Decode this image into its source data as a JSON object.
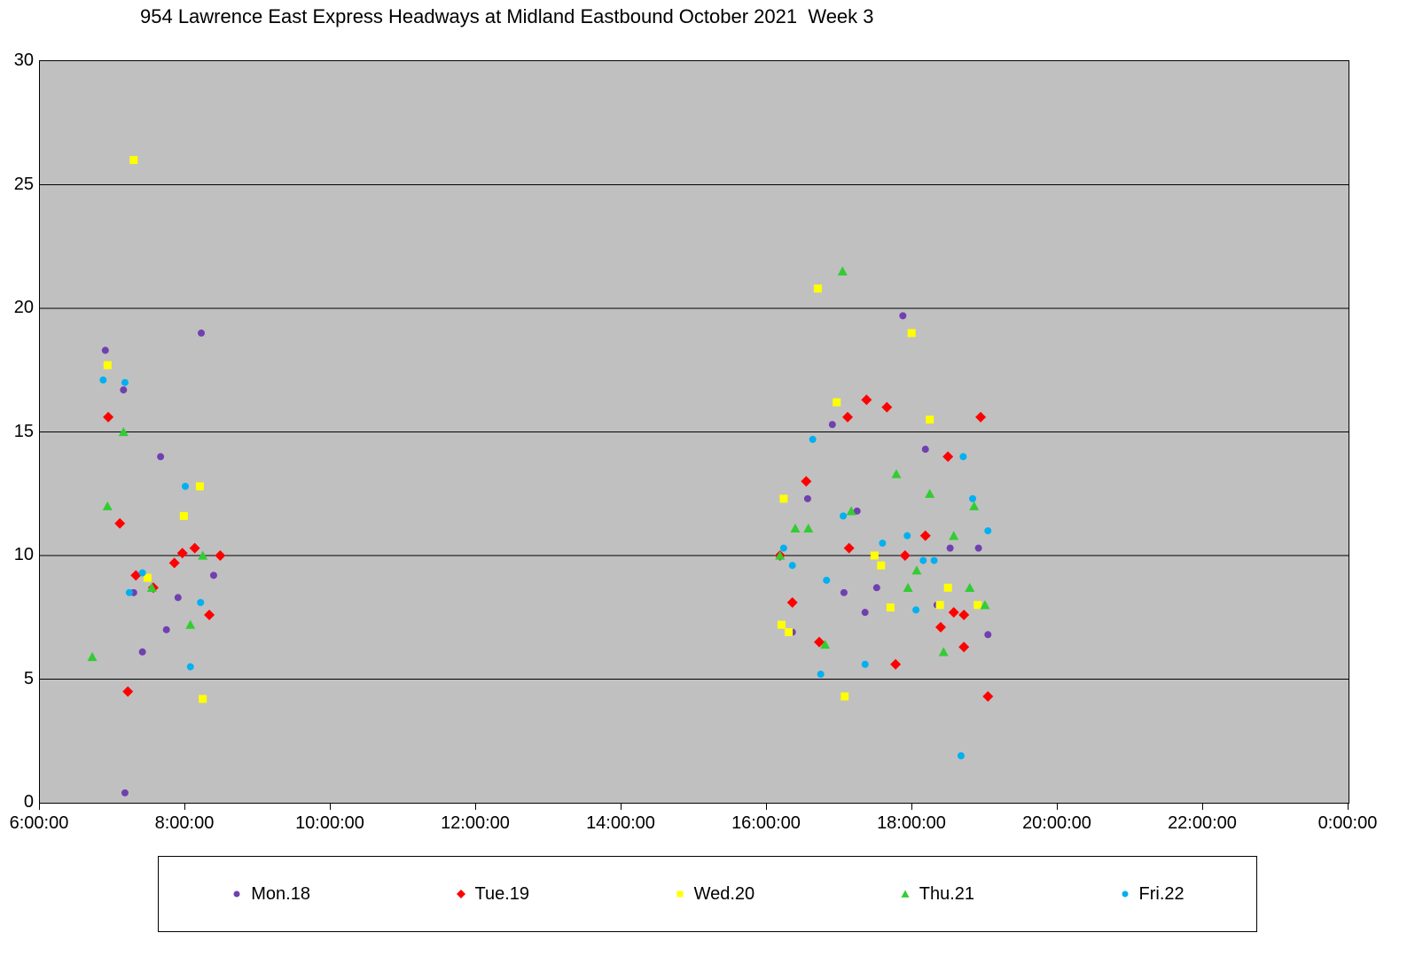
{
  "title": "954 Lawrence East Express Headways at Midland Eastbound October 2021  Week 3",
  "chart_data": {
    "type": "scatter",
    "title": "954 Lawrence East Express Headways at Midland Eastbound October 2021  Week 3",
    "xlabel": "",
    "ylabel": "",
    "x_unit": "time of day (decimal hours)",
    "y_unit": "headway (minutes)",
    "xlim": [
      6,
      24
    ],
    "ylim": [
      0,
      30
    ],
    "grid": "horizontal",
    "plot_bg": "#c0c0c0",
    "grid_color": "#000000",
    "legend_position": "bottom",
    "x_ticks": [
      {
        "t": 6,
        "label": "6:00:00"
      },
      {
        "t": 8,
        "label": "8:00:00"
      },
      {
        "t": 10,
        "label": "10:00:00"
      },
      {
        "t": 12,
        "label": "12:00:00"
      },
      {
        "t": 14,
        "label": "14:00:00"
      },
      {
        "t": 16,
        "label": "16:00:00"
      },
      {
        "t": 18,
        "label": "18:00:00"
      },
      {
        "t": 20,
        "label": "20:00:00"
      },
      {
        "t": 22,
        "label": "22:00:00"
      },
      {
        "t": 24,
        "label": "0:00:00"
      }
    ],
    "y_ticks": [
      0,
      5,
      10,
      15,
      20,
      25,
      30
    ],
    "series": [
      {
        "name": "Mon.18",
        "marker": "circle",
        "color": "#7040b0",
        "points": [
          [
            6.9,
            18.3
          ],
          [
            7.15,
            16.7
          ],
          [
            7.17,
            0.4
          ],
          [
            7.29,
            8.5
          ],
          [
            7.41,
            6.1
          ],
          [
            7.66,
            14.0
          ],
          [
            7.74,
            7.0
          ],
          [
            7.9,
            8.3
          ],
          [
            8.22,
            19.0
          ],
          [
            8.39,
            9.2
          ],
          [
            16.35,
            6.9
          ],
          [
            16.56,
            12.3
          ],
          [
            16.9,
            15.3
          ],
          [
            17.06,
            8.5
          ],
          [
            17.24,
            11.8
          ],
          [
            17.35,
            7.7
          ],
          [
            17.51,
            8.7
          ],
          [
            17.87,
            19.7
          ],
          [
            18.18,
            14.3
          ],
          [
            18.34,
            8.0
          ],
          [
            18.52,
            10.3
          ],
          [
            18.91,
            10.3
          ],
          [
            19.04,
            6.8
          ]
        ]
      },
      {
        "name": "Tue.19",
        "marker": "diamond",
        "color": "#ff0000",
        "points": [
          [
            6.94,
            15.6
          ],
          [
            7.1,
            11.3
          ],
          [
            7.21,
            4.5
          ],
          [
            7.32,
            9.2
          ],
          [
            7.56,
            8.7
          ],
          [
            7.85,
            9.7
          ],
          [
            7.96,
            10.1
          ],
          [
            8.13,
            10.3
          ],
          [
            8.33,
            7.6
          ],
          [
            8.48,
            10.0
          ],
          [
            16.18,
            10.0
          ],
          [
            16.35,
            8.1
          ],
          [
            16.54,
            13.0
          ],
          [
            16.72,
            6.5
          ],
          [
            17.11,
            15.6
          ],
          [
            17.13,
            10.3
          ],
          [
            17.37,
            16.3
          ],
          [
            17.65,
            16.0
          ],
          [
            17.77,
            5.6
          ],
          [
            17.9,
            10.0
          ],
          [
            18.18,
            10.8
          ],
          [
            18.39,
            7.1
          ],
          [
            18.49,
            14.0
          ],
          [
            18.57,
            7.7
          ],
          [
            18.71,
            7.6
          ],
          [
            18.71,
            6.3
          ],
          [
            18.94,
            15.6
          ],
          [
            19.04,
            4.3
          ]
        ]
      },
      {
        "name": "Wed.20",
        "marker": "square",
        "color": "#ffff00",
        "points": [
          [
            6.93,
            17.7
          ],
          [
            7.29,
            26.0
          ],
          [
            7.48,
            9.1
          ],
          [
            7.98,
            11.6
          ],
          [
            8.2,
            12.8
          ],
          [
            8.24,
            4.2
          ],
          [
            16.2,
            7.2
          ],
          [
            16.23,
            12.3
          ],
          [
            16.3,
            6.9
          ],
          [
            16.7,
            20.8
          ],
          [
            16.96,
            16.2
          ],
          [
            17.07,
            4.3
          ],
          [
            17.48,
            10.0
          ],
          [
            17.57,
            9.6
          ],
          [
            17.7,
            7.9
          ],
          [
            17.99,
            19.0
          ],
          [
            18.24,
            15.5
          ],
          [
            18.38,
            8.0
          ],
          [
            18.49,
            8.7
          ],
          [
            18.9,
            8.0
          ]
        ]
      },
      {
        "name": "Thu.21",
        "marker": "triangle",
        "color": "#33cc33",
        "points": [
          [
            6.72,
            5.9
          ],
          [
            6.93,
            12.0
          ],
          [
            7.15,
            15.0
          ],
          [
            7.54,
            8.7
          ],
          [
            8.07,
            7.2
          ],
          [
            8.24,
            10.0
          ],
          [
            16.18,
            10.0
          ],
          [
            16.39,
            11.1
          ],
          [
            16.57,
            11.1
          ],
          [
            16.8,
            6.4
          ],
          [
            17.04,
            21.5
          ],
          [
            17.16,
            11.8
          ],
          [
            17.78,
            13.3
          ],
          [
            17.94,
            8.7
          ],
          [
            18.06,
            9.4
          ],
          [
            18.24,
            12.5
          ],
          [
            18.43,
            6.1
          ],
          [
            18.57,
            10.8
          ],
          [
            18.79,
            8.7
          ],
          [
            18.85,
            12.0
          ],
          [
            19.0,
            8.0
          ]
        ]
      },
      {
        "name": "Fri.22",
        "marker": "circle",
        "color": "#00b0f0",
        "points": [
          [
            6.87,
            17.1
          ],
          [
            7.17,
            17.0
          ],
          [
            7.23,
            8.5
          ],
          [
            7.41,
            9.3
          ],
          [
            8.0,
            12.8
          ],
          [
            8.07,
            5.5
          ],
          [
            8.21,
            8.1
          ],
          [
            16.23,
            10.3
          ],
          [
            16.35,
            9.6
          ],
          [
            16.63,
            14.7
          ],
          [
            16.74,
            5.2
          ],
          [
            16.82,
            9.0
          ],
          [
            17.05,
            11.6
          ],
          [
            17.35,
            5.6
          ],
          [
            17.59,
            10.5
          ],
          [
            17.93,
            10.8
          ],
          [
            18.05,
            7.8
          ],
          [
            18.15,
            9.8
          ],
          [
            18.3,
            9.8
          ],
          [
            18.67,
            1.9
          ],
          [
            18.7,
            14.0
          ],
          [
            18.83,
            12.3
          ],
          [
            19.04,
            11.0
          ]
        ]
      }
    ]
  }
}
